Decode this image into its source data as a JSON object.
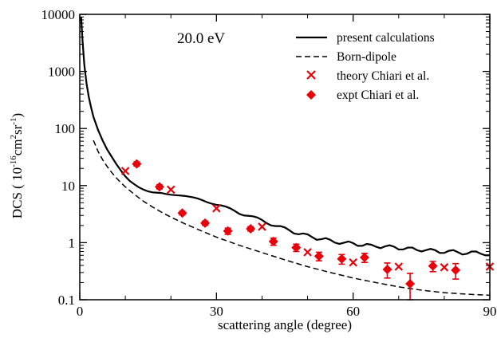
{
  "chart_data": {
    "type": "line",
    "annotation": "20.0 eV",
    "xlabel": "scattering angle (degree)",
    "ylabel": {
      "prefix": "DCS ( 10",
      "exp1": "-16",
      "mid1": "cm",
      "exp2": "2",
      "mid2": "sr",
      "exp3": "-1",
      "suffix": ")"
    },
    "xlim": [
      0,
      90
    ],
    "ylim": [
      0.1,
      10000
    ],
    "yscale": "log",
    "grid": false,
    "legend_position": "top-right",
    "xticks": [
      0,
      30,
      60,
      90
    ],
    "xtick_labels": [
      "0",
      "30",
      "60",
      "90"
    ],
    "yticks": [
      0.1,
      1,
      10,
      100,
      1000,
      10000
    ],
    "ytick_labels": [
      "0.1",
      "1",
      "10",
      "100",
      "1000",
      "10000"
    ],
    "colors": {
      "calc": "#000000",
      "born": "#000000",
      "theory": "#e8000b",
      "expt": "#e8000b"
    },
    "series": [
      {
        "name": "present calculations",
        "style": "solid",
        "x": [
          0.3,
          0.6,
          1,
          1.5,
          2,
          2.5,
          3,
          4,
          5,
          6,
          7,
          8,
          9,
          10,
          11,
          12,
          13,
          14,
          15,
          16,
          17,
          18,
          19,
          20,
          21,
          22,
          23,
          24,
          25,
          26,
          27,
          28,
          29,
          30,
          31,
          32,
          33,
          34,
          35,
          36,
          37,
          38,
          39,
          40,
          41,
          42,
          43,
          44,
          45,
          46,
          47,
          48,
          49,
          50,
          51,
          52,
          53,
          54,
          55,
          56,
          57,
          58,
          59,
          60,
          61,
          62,
          63,
          64,
          65,
          66,
          67,
          68,
          69,
          70,
          71,
          72,
          73,
          74,
          75,
          76,
          77,
          78,
          79,
          80,
          81,
          82,
          83,
          84,
          85,
          86,
          87,
          88,
          89,
          90
        ],
        "y": [
          9000,
          3500,
          1300,
          600,
          350,
          230,
          160,
          95,
          62,
          43,
          32,
          24,
          18.5,
          14.5,
          12,
          10.5,
          9.3,
          8.5,
          7.9,
          7.6,
          7.5,
          7.4,
          7.1,
          6.9,
          6.8,
          6.7,
          6.6,
          6.4,
          6.2,
          5.9,
          5.5,
          5.1,
          4.8,
          4.6,
          4.5,
          4.3,
          4.0,
          3.6,
          3.2,
          3.0,
          2.95,
          2.9,
          2.75,
          2.5,
          2.2,
          2.0,
          1.95,
          1.95,
          1.85,
          1.65,
          1.45,
          1.4,
          1.45,
          1.4,
          1.25,
          1.12,
          1.15,
          1.2,
          1.12,
          1.0,
          0.95,
          1.0,
          1.05,
          0.98,
          0.88,
          0.88,
          0.95,
          0.92,
          0.85,
          0.8,
          0.86,
          0.9,
          0.85,
          0.76,
          0.76,
          0.82,
          0.82,
          0.74,
          0.7,
          0.74,
          0.78,
          0.74,
          0.66,
          0.66,
          0.72,
          0.74,
          0.68,
          0.62,
          0.64,
          0.7,
          0.7,
          0.64,
          0.6,
          0.6
        ]
      },
      {
        "name": "Born-dipole",
        "style": "dashed",
        "x": [
          3,
          4,
          5,
          6,
          7,
          8,
          9,
          10,
          12,
          14,
          16,
          18,
          20,
          23,
          26,
          30,
          35,
          40,
          45,
          50,
          55,
          60,
          65,
          70,
          75,
          80,
          85,
          90
        ],
        "y": [
          62,
          40,
          28.5,
          21.6,
          17.0,
          13.7,
          11.3,
          9.5,
          7.0,
          5.3,
          4.2,
          3.4,
          2.8,
          2.15,
          1.7,
          1.25,
          0.9,
          0.67,
          0.5,
          0.38,
          0.3,
          0.24,
          0.2,
          0.168,
          0.147,
          0.133,
          0.125,
          0.12
        ]
      },
      {
        "name": "theory Chiari et al.",
        "marker": "x",
        "x": [
          10,
          20,
          30,
          40,
          50,
          60,
          70,
          80,
          90
        ],
        "y": [
          18,
          8.5,
          4.0,
          1.9,
          0.68,
          0.45,
          0.38,
          0.37,
          0.38
        ]
      },
      {
        "name": "expt Chiari et al.",
        "marker": "diamond",
        "x": [
          12.5,
          17.5,
          22.5,
          27.5,
          32.5,
          37.5,
          42.5,
          47.5,
          52.5,
          57.5,
          62.5,
          67.5,
          72.5,
          77.5,
          82.5
        ],
        "y": [
          24,
          9.5,
          3.3,
          2.2,
          1.6,
          1.75,
          1.05,
          0.82,
          0.58,
          0.52,
          0.55,
          0.34,
          0.19,
          0.39,
          0.33
        ],
        "err": [
          2.0,
          0.8,
          0.25,
          0.18,
          0.2,
          0.15,
          0.15,
          0.12,
          0.1,
          0.1,
          0.1,
          0.1,
          0.1,
          0.08,
          0.1
        ]
      }
    ]
  }
}
